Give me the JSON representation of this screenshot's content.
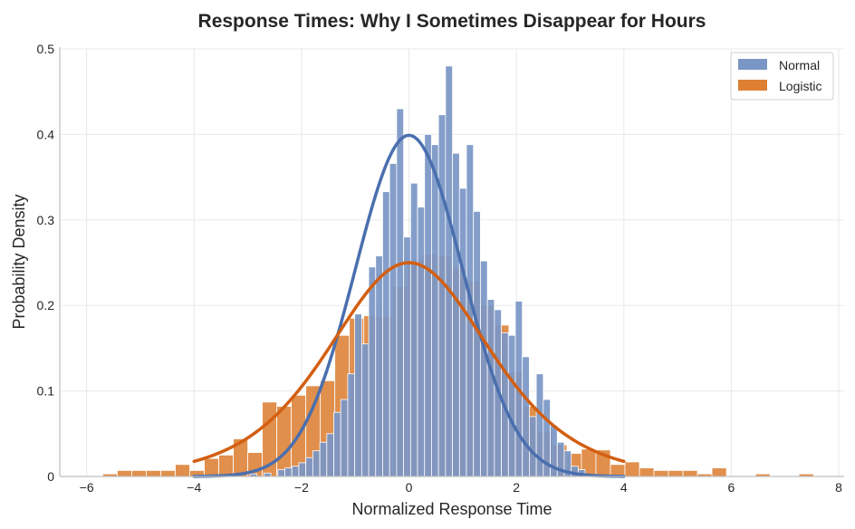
{
  "chart_data": {
    "type": "bar",
    "subtype": "histogram-with-density-curves",
    "title": "Response Times: Why I Sometimes Disappear for Hours",
    "xlabel": "Normalized Response Time",
    "ylabel": "Probability Density",
    "xlim": [
      -6.5,
      8.1
    ],
    "ylim": [
      0,
      0.5
    ],
    "xticks": [
      -6,
      -4,
      -2,
      0,
      2,
      4,
      6,
      8
    ],
    "xtick_labels": [
      "−6",
      "−4",
      "−2",
      "0",
      "2",
      "4",
      "6",
      "8"
    ],
    "yticks": [
      0,
      0.1,
      0.2,
      0.3,
      0.4,
      0.5
    ],
    "ytick_labels": [
      "0",
      "0.1",
      "0.2",
      "0.3",
      "0.4",
      "0.5"
    ],
    "grid": true,
    "legend_position": "top-right",
    "legend": [
      "Normal",
      "Logistic"
    ],
    "colors": {
      "normal_bar": "#7a96c6",
      "normal_curve": "#4a6fae",
      "logistic_bar": "#dd8033",
      "logistic_curve": "#d35f12",
      "axis": "#bfbfbf",
      "text": "#262626"
    },
    "series": [
      {
        "name": "Normal",
        "kind": "histogram",
        "bins": [
          {
            "x0": -2.96,
            "x1": -2.83,
            "density": 0.003
          },
          {
            "x0": -2.7,
            "x1": -2.57,
            "density": 0.004
          },
          {
            "x0": -2.44,
            "x1": -2.31,
            "density": 0.008
          },
          {
            "x0": -2.31,
            "x1": -2.18,
            "density": 0.01
          },
          {
            "x0": -2.18,
            "x1": -2.05,
            "density": 0.012
          },
          {
            "x0": -2.05,
            "x1": -1.92,
            "density": 0.016
          },
          {
            "x0": -1.92,
            "x1": -1.79,
            "density": 0.022
          },
          {
            "x0": -1.79,
            "x1": -1.66,
            "density": 0.03
          },
          {
            "x0": -1.66,
            "x1": -1.53,
            "density": 0.04
          },
          {
            "x0": -1.53,
            "x1": -1.4,
            "density": 0.05
          },
          {
            "x0": -1.4,
            "x1": -1.27,
            "density": 0.075
          },
          {
            "x0": -1.27,
            "x1": -1.14,
            "density": 0.09
          },
          {
            "x0": -1.14,
            "x1": -1.01,
            "density": 0.12
          },
          {
            "x0": -1.01,
            "x1": -0.88,
            "density": 0.19
          },
          {
            "x0": -0.88,
            "x1": -0.75,
            "density": 0.155
          },
          {
            "x0": -0.75,
            "x1": -0.62,
            "density": 0.245
          },
          {
            "x0": -0.62,
            "x1": -0.49,
            "density": 0.258
          },
          {
            "x0": -0.49,
            "x1": -0.36,
            "density": 0.333
          },
          {
            "x0": -0.36,
            "x1": -0.23,
            "density": 0.366
          },
          {
            "x0": -0.23,
            "x1": -0.1,
            "density": 0.43
          },
          {
            "x0": -0.1,
            "x1": 0.03,
            "density": 0.28
          },
          {
            "x0": 0.03,
            "x1": 0.16,
            "density": 0.343
          },
          {
            "x0": 0.16,
            "x1": 0.29,
            "density": 0.315
          },
          {
            "x0": 0.29,
            "x1": 0.42,
            "density": 0.4
          },
          {
            "x0": 0.42,
            "x1": 0.55,
            "density": 0.388
          },
          {
            "x0": 0.55,
            "x1": 0.68,
            "density": 0.423
          },
          {
            "x0": 0.68,
            "x1": 0.81,
            "density": 0.48
          },
          {
            "x0": 0.81,
            "x1": 0.94,
            "density": 0.378
          },
          {
            "x0": 0.94,
            "x1": 1.07,
            "density": 0.337
          },
          {
            "x0": 1.07,
            "x1": 1.2,
            "density": 0.388
          },
          {
            "x0": 1.2,
            "x1": 1.33,
            "density": 0.31
          },
          {
            "x0": 1.33,
            "x1": 1.46,
            "density": 0.252
          },
          {
            "x0": 1.46,
            "x1": 1.59,
            "density": 0.207
          },
          {
            "x0": 1.59,
            "x1": 1.72,
            "density": 0.195
          },
          {
            "x0": 1.72,
            "x1": 1.85,
            "density": 0.168
          },
          {
            "x0": 1.85,
            "x1": 1.98,
            "density": 0.165
          },
          {
            "x0": 1.98,
            "x1": 2.11,
            "density": 0.205
          },
          {
            "x0": 2.11,
            "x1": 2.24,
            "density": 0.14
          },
          {
            "x0": 2.24,
            "x1": 2.37,
            "density": 0.07
          },
          {
            "x0": 2.37,
            "x1": 2.5,
            "density": 0.12
          },
          {
            "x0": 2.5,
            "x1": 2.63,
            "density": 0.09
          },
          {
            "x0": 2.63,
            "x1": 2.76,
            "density": 0.06
          },
          {
            "x0": 2.76,
            "x1": 2.89,
            "density": 0.04
          },
          {
            "x0": 2.89,
            "x1": 3.02,
            "density": 0.03
          },
          {
            "x0": 3.02,
            "x1": 3.15,
            "density": 0.012
          },
          {
            "x0": 3.15,
            "x1": 3.28,
            "density": 0.008
          }
        ]
      },
      {
        "name": "Logistic",
        "kind": "histogram",
        "bins": [
          {
            "x0": -5.7,
            "x1": -5.43,
            "density": 0.003
          },
          {
            "x0": -5.43,
            "x1": -5.16,
            "density": 0.007
          },
          {
            "x0": -5.16,
            "x1": -4.89,
            "density": 0.007
          },
          {
            "x0": -4.89,
            "x1": -4.62,
            "density": 0.007
          },
          {
            "x0": -4.62,
            "x1": -4.35,
            "density": 0.007
          },
          {
            "x0": -4.35,
            "x1": -4.08,
            "density": 0.014
          },
          {
            "x0": -4.08,
            "x1": -3.81,
            "density": 0.007
          },
          {
            "x0": -3.81,
            "x1": -3.54,
            "density": 0.021
          },
          {
            "x0": -3.54,
            "x1": -3.27,
            "density": 0.025
          },
          {
            "x0": -3.27,
            "x1": -3.0,
            "density": 0.044
          },
          {
            "x0": -3.0,
            "x1": -2.73,
            "density": 0.028
          },
          {
            "x0": -2.73,
            "x1": -2.46,
            "density": 0.087
          },
          {
            "x0": -2.46,
            "x1": -2.19,
            "density": 0.082
          },
          {
            "x0": -2.19,
            "x1": -1.92,
            "density": 0.095
          },
          {
            "x0": -1.92,
            "x1": -1.65,
            "density": 0.106
          },
          {
            "x0": -1.65,
            "x1": -1.38,
            "density": 0.112
          },
          {
            "x0": -1.38,
            "x1": -1.11,
            "density": 0.165
          },
          {
            "x0": -1.11,
            "x1": -0.84,
            "density": 0.185
          },
          {
            "x0": -0.84,
            "x1": -0.57,
            "density": 0.188
          },
          {
            "x0": -0.57,
            "x1": -0.3,
            "density": 0.187
          },
          {
            "x0": -0.3,
            "x1": -0.03,
            "density": 0.222
          },
          {
            "x0": -0.03,
            "x1": 0.24,
            "density": 0.253
          },
          {
            "x0": 0.24,
            "x1": 0.51,
            "density": 0.26
          },
          {
            "x0": 0.51,
            "x1": 0.78,
            "density": 0.258
          },
          {
            "x0": 0.78,
            "x1": 1.05,
            "density": 0.243
          },
          {
            "x0": 1.05,
            "x1": 1.32,
            "density": 0.228
          },
          {
            "x0": 1.32,
            "x1": 1.59,
            "density": 0.2
          },
          {
            "x0": 1.59,
            "x1": 1.86,
            "density": 0.177
          },
          {
            "x0": 1.86,
            "x1": 2.13,
            "density": 0.122
          },
          {
            "x0": 2.13,
            "x1": 2.4,
            "density": 0.082
          },
          {
            "x0": 2.4,
            "x1": 2.67,
            "density": 0.052
          },
          {
            "x0": 2.67,
            "x1": 2.94,
            "density": 0.037
          },
          {
            "x0": 2.94,
            "x1": 3.21,
            "density": 0.027
          },
          {
            "x0": 3.21,
            "x1": 3.48,
            "density": 0.032
          },
          {
            "x0": 3.48,
            "x1": 3.75,
            "density": 0.031
          },
          {
            "x0": 3.75,
            "x1": 4.02,
            "density": 0.014
          },
          {
            "x0": 4.02,
            "x1": 4.29,
            "density": 0.017
          },
          {
            "x0": 4.29,
            "x1": 4.56,
            "density": 0.01
          },
          {
            "x0": 4.56,
            "x1": 4.83,
            "density": 0.007
          },
          {
            "x0": 4.83,
            "x1": 5.1,
            "density": 0.007
          },
          {
            "x0": 5.1,
            "x1": 5.37,
            "density": 0.007
          },
          {
            "x0": 5.37,
            "x1": 5.64,
            "density": 0.003
          },
          {
            "x0": 5.64,
            "x1": 5.91,
            "density": 0.01
          },
          {
            "x0": 6.45,
            "x1": 6.72,
            "density": 0.003
          },
          {
            "x0": 7.26,
            "x1": 7.53,
            "density": 0.003
          }
        ]
      },
      {
        "name": "Normal",
        "kind": "density-curve",
        "distribution": "normal",
        "mu": 0,
        "sigma": 1,
        "x_range": [
          -4,
          4
        ]
      },
      {
        "name": "Logistic",
        "kind": "density-curve",
        "distribution": "logistic",
        "mu": 0,
        "s": 1,
        "x_range": [
          -4,
          4
        ]
      }
    ]
  }
}
